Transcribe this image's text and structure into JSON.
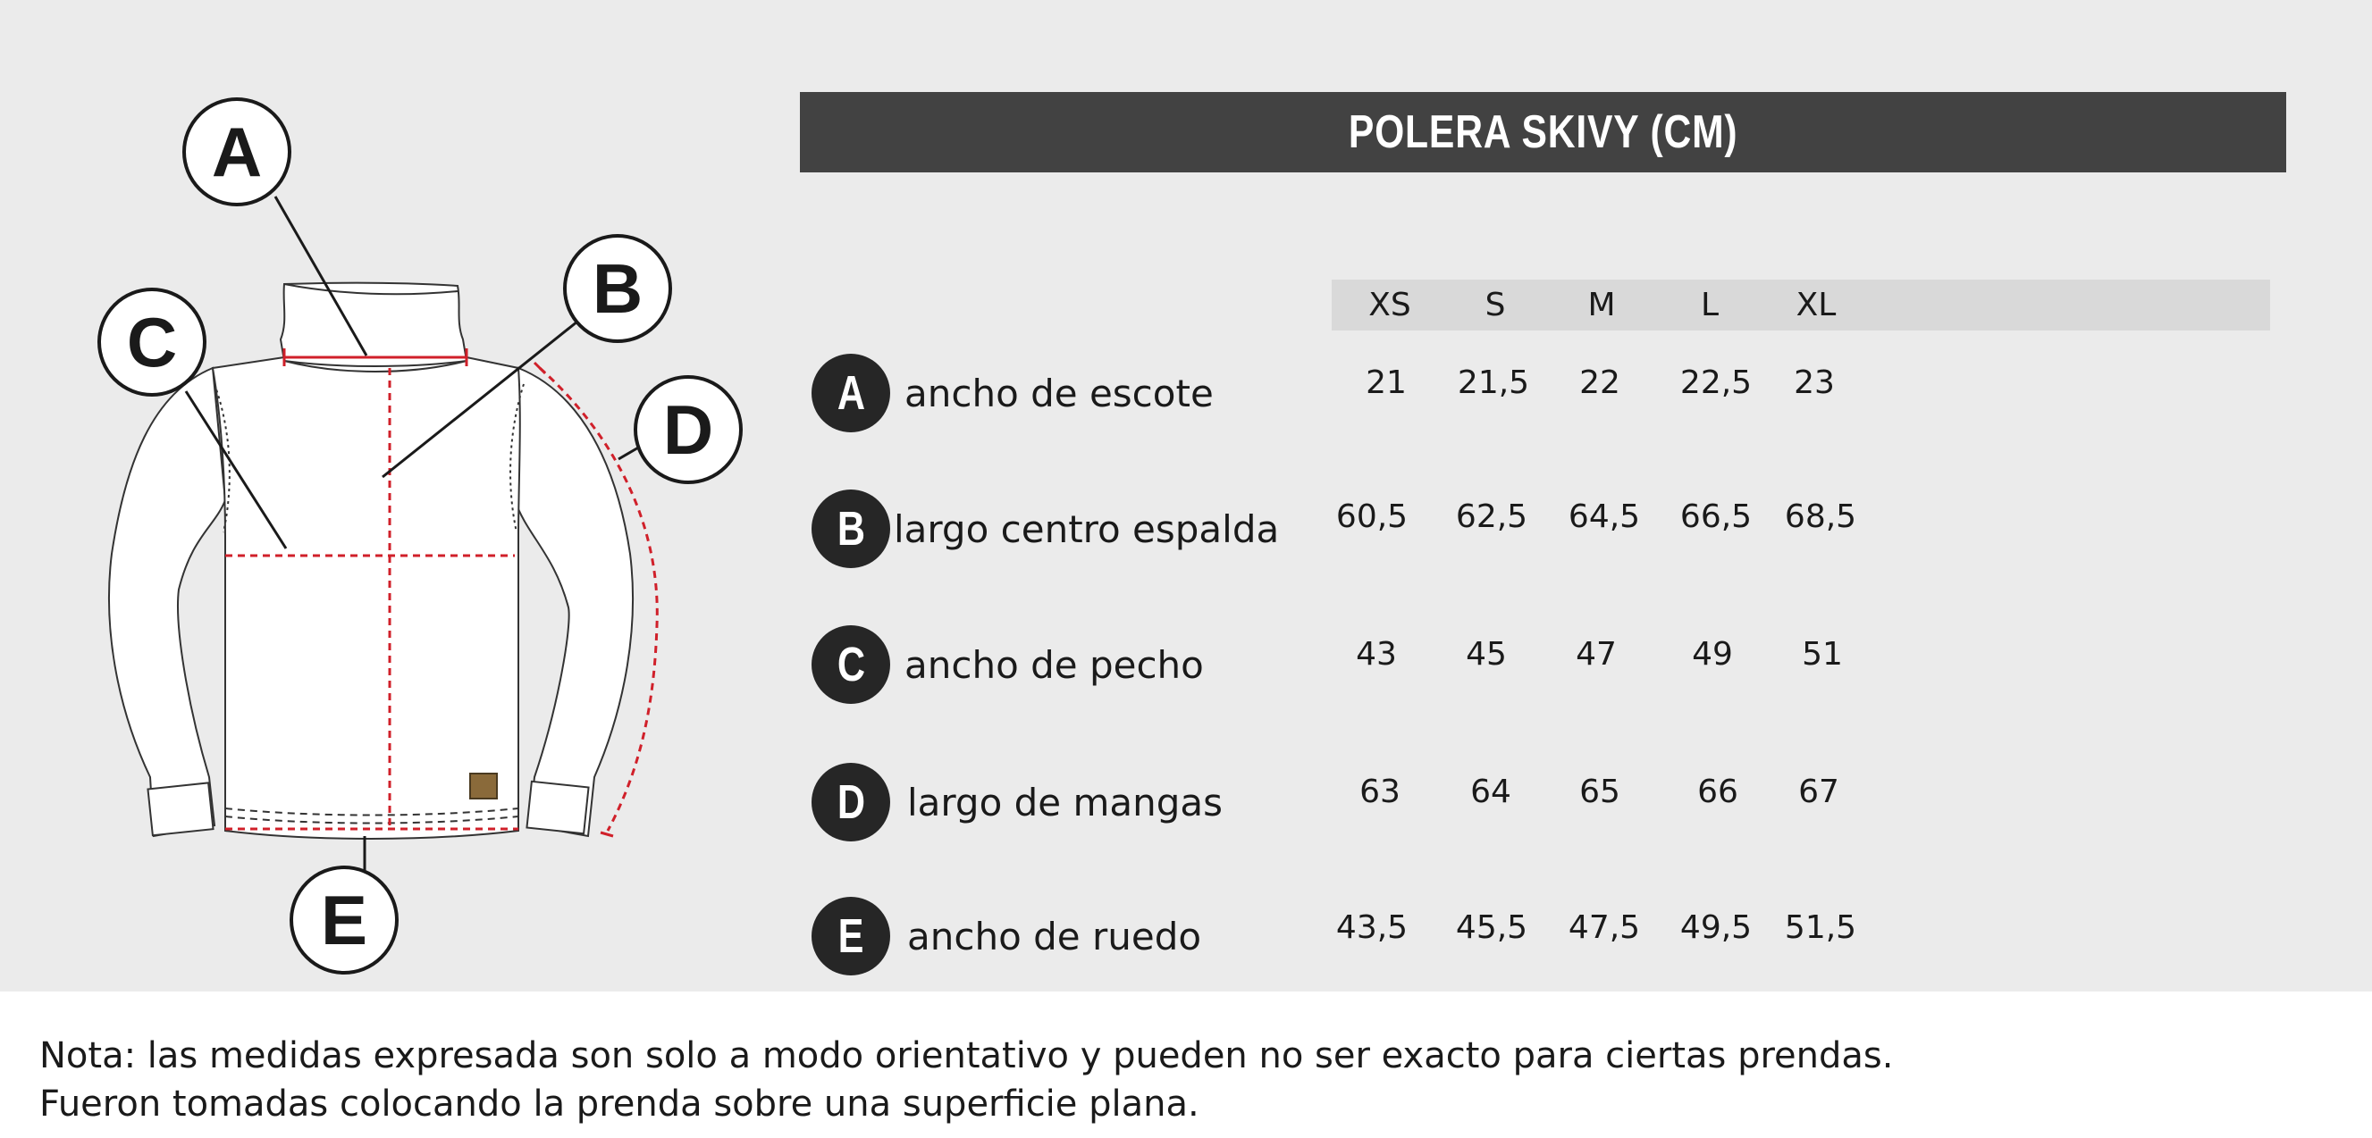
{
  "title": "POLERA SKIVY (CM)",
  "sizes": [
    "XS",
    "S",
    "M",
    "L",
    "XL"
  ],
  "rows": [
    {
      "letter": "A",
      "label": "ancho de escote",
      "values": [
        "21",
        "21,5",
        "22",
        "22,5",
        "23"
      ]
    },
    {
      "letter": "B",
      "label": "largo centro espalda",
      "values": [
        "60,5",
        "62,5",
        "64,5",
        "66,5",
        "68,5"
      ]
    },
    {
      "letter": "C",
      "label": "ancho de pecho",
      "values": [
        "43",
        "45",
        "47",
        "49",
        "51"
      ]
    },
    {
      "letter": "D",
      "label": "largo de mangas",
      "values": [
        "63",
        "64",
        "65",
        "66",
        "67"
      ]
    },
    {
      "letter": "E",
      "label": "ancho de ruedo",
      "values": [
        "43,5",
        "45,5",
        "47,5",
        "49,5",
        "51,5"
      ]
    }
  ],
  "diagram": {
    "callouts": [
      "A",
      "B",
      "C",
      "D",
      "E"
    ],
    "measure_color": "#d0202a"
  },
  "note": {
    "line1": "Nota: las medidas expresada son solo a modo orientativo y pueden no ser exacto para ciertas prendas.",
    "line2": "Fueron tomadas colocando la prenda sobre una superficie plana."
  }
}
